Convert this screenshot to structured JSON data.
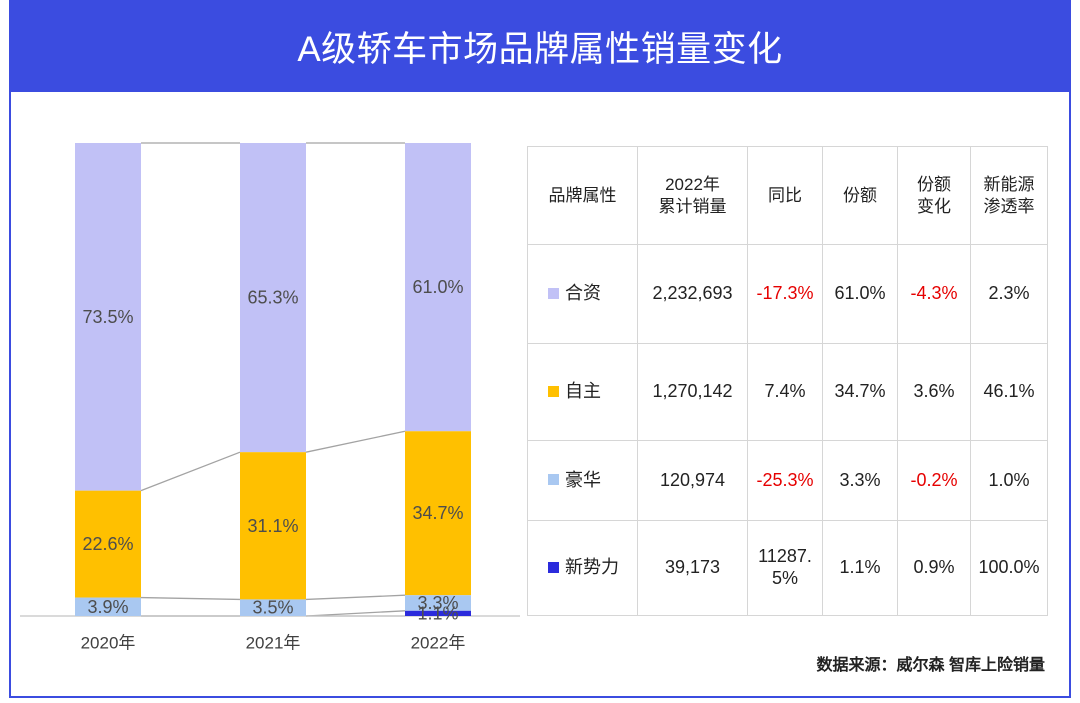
{
  "header": {
    "title": "A级轿车市场品牌属性销量变化"
  },
  "chart_data": {
    "type": "bar",
    "stacked": true,
    "title": "",
    "xlabel": "",
    "ylabel": "",
    "ylim": [
      0,
      100
    ],
    "categories": [
      "2020年",
      "2021年",
      "2022年"
    ],
    "series": [
      {
        "name": "合资",
        "color": "#c1c1f6",
        "values": [
          73.5,
          65.3,
          61.0
        ],
        "labels": [
          "73.5%",
          "65.3%",
          "61.0%"
        ]
      },
      {
        "name": "自主",
        "color": "#ffc000",
        "values": [
          22.6,
          31.1,
          34.7
        ],
        "labels": [
          "22.6%",
          "31.1%",
          "34.7%"
        ]
      },
      {
        "name": "豪华",
        "color": "#a9c8f1",
        "values": [
          3.9,
          3.5,
          3.3
        ],
        "labels": [
          "3.9%",
          "3.5%",
          "3.3%"
        ]
      },
      {
        "name": "新势力",
        "color": "#2b2bdc",
        "values": [
          null,
          null,
          1.1
        ],
        "labels": [
          null,
          null,
          "1.1%"
        ]
      }
    ]
  },
  "table": {
    "negative_color": "#e60000",
    "headers": [
      "品牌属性",
      "2022年\n累计销量",
      "同比",
      "份额",
      "份额\n变化",
      "新能源\n渗透率"
    ],
    "rows": [
      {
        "sales": "2,232,693",
        "yoy": "-17.3%",
        "share": "61.0%",
        "share_change": "-4.3%",
        "nev_penetration": "2.3%"
      },
      {
        "sales": "1,270,142",
        "yoy": "7.4%",
        "share": "34.7%",
        "share_change": "3.6%",
        "nev_penetration": "46.1%"
      },
      {
        "sales": "120,974",
        "yoy": "-25.3%",
        "share": "3.3%",
        "share_change": "-0.2%",
        "nev_penetration": "1.0%"
      },
      {
        "sales": "39,173",
        "yoy": "11287.5%",
        "share": "1.1%",
        "share_change": "0.9%",
        "nev_penetration": "100.0%"
      }
    ]
  },
  "footer": {
    "source": "数据来源：威尔森 智库上险销量"
  }
}
